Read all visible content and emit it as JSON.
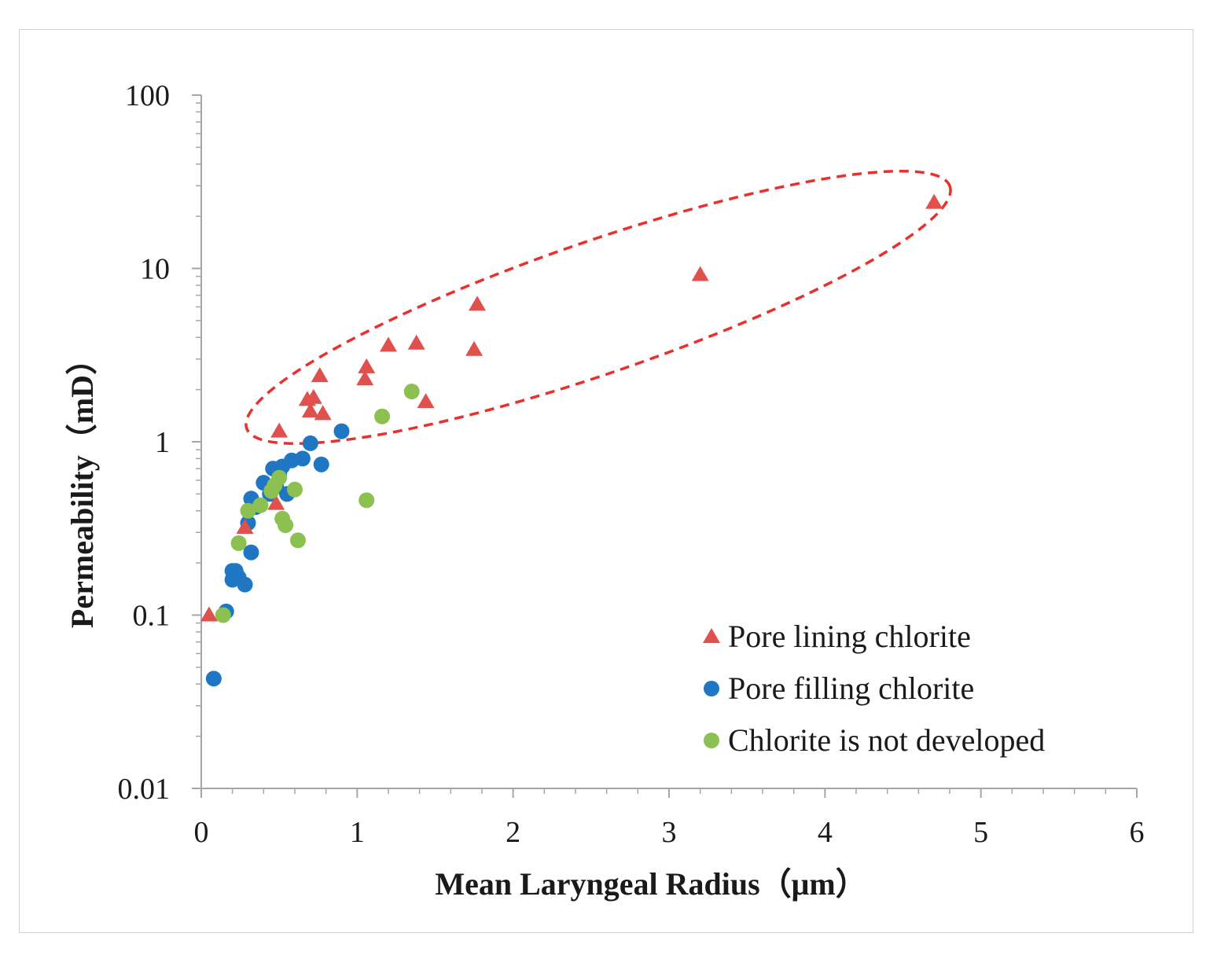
{
  "chart_data": {
    "type": "scatter",
    "title": "",
    "xlabel": "Mean Laryngeal Radius（μm）",
    "ylabel": "Permeability（mD）",
    "xlim": [
      0,
      6
    ],
    "ylim": [
      0.01,
      100
    ],
    "yscale": "log",
    "x_ticks": [
      0,
      1,
      2,
      3,
      4,
      5,
      6
    ],
    "x_tick_labels": [
      "0",
      "1",
      "2",
      "3",
      "4",
      "5",
      "6"
    ],
    "y_ticks": [
      0.01,
      0.1,
      1,
      10,
      100
    ],
    "y_tick_labels": [
      "0.01",
      "0.1",
      "1",
      "10",
      "100"
    ],
    "legend_position": "bottom-right",
    "series": [
      {
        "name": "Pore filling chlorite",
        "marker": "circle",
        "color": "#1f77c4",
        "points": [
          [
            0.08,
            0.043
          ],
          [
            0.16,
            0.105
          ],
          [
            0.2,
            0.16
          ],
          [
            0.2,
            0.18
          ],
          [
            0.22,
            0.18
          ],
          [
            0.24,
            0.165
          ],
          [
            0.28,
            0.15
          ],
          [
            0.3,
            0.34
          ],
          [
            0.32,
            0.23
          ],
          [
            0.32,
            0.47
          ],
          [
            0.35,
            0.42
          ],
          [
            0.4,
            0.58
          ],
          [
            0.44,
            0.5
          ],
          [
            0.46,
            0.7
          ],
          [
            0.48,
            0.55
          ],
          [
            0.5,
            0.65
          ],
          [
            0.52,
            0.72
          ],
          [
            0.55,
            0.5
          ],
          [
            0.58,
            0.78
          ],
          [
            0.65,
            0.8
          ],
          [
            0.7,
            0.98
          ],
          [
            0.77,
            0.74
          ],
          [
            0.9,
            1.15
          ]
        ]
      },
      {
        "name": "Pore lining chlorite",
        "marker": "triangle",
        "color": "#e0504c",
        "points": [
          [
            0.05,
            0.1
          ],
          [
            0.28,
            0.32
          ],
          [
            0.48,
            0.44
          ],
          [
            0.5,
            1.15
          ],
          [
            0.68,
            1.75
          ],
          [
            0.7,
            1.5
          ],
          [
            0.72,
            1.8
          ],
          [
            0.76,
            2.4
          ],
          [
            0.78,
            1.45
          ],
          [
            1.05,
            2.3
          ],
          [
            1.06,
            2.7
          ],
          [
            1.2,
            3.6
          ],
          [
            1.38,
            3.7
          ],
          [
            1.44,
            1.7
          ],
          [
            1.75,
            3.4
          ],
          [
            1.77,
            6.2
          ],
          [
            3.2,
            9.2
          ],
          [
            4.7,
            24
          ]
        ]
      },
      {
        "name": "Chlorite is not developed",
        "marker": "circle",
        "color": "#8cc152",
        "points": [
          [
            0.14,
            0.1
          ],
          [
            0.24,
            0.26
          ],
          [
            0.3,
            0.4
          ],
          [
            0.38,
            0.43
          ],
          [
            0.45,
            0.52
          ],
          [
            0.47,
            0.56
          ],
          [
            0.5,
            0.62
          ],
          [
            0.52,
            0.36
          ],
          [
            0.54,
            0.33
          ],
          [
            0.6,
            0.53
          ],
          [
            0.62,
            0.27
          ],
          [
            1.06,
            0.46
          ],
          [
            1.16,
            1.4
          ],
          [
            1.35,
            1.95
          ]
        ]
      }
    ],
    "annotations": [
      {
        "type": "dashed-ellipse",
        "color": "#e8302c",
        "description": "highlight region"
      }
    ]
  }
}
